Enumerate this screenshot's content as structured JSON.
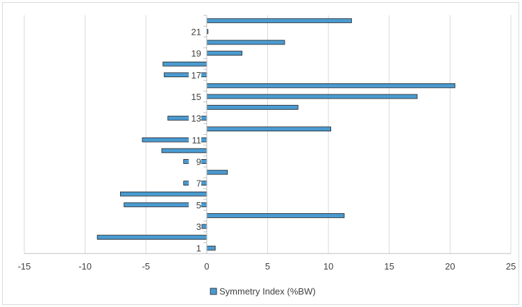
{
  "chart_data": {
    "type": "bar",
    "orientation": "horizontal",
    "categories": [
      "1",
      "2",
      "3",
      "4",
      "5",
      "6",
      "7",
      "8",
      "9",
      "10",
      "11",
      "12",
      "13",
      "14",
      "15",
      "16",
      "17",
      "18",
      "19",
      "20",
      "21",
      "22"
    ],
    "category_tick_labels": [
      "1",
      "3",
      "5",
      "7",
      "9",
      "11",
      "13",
      "15",
      "17",
      "19",
      "21"
    ],
    "series": [
      {
        "name": "Symmetry Index (%BW)",
        "values": [
          0.7,
          -9.0,
          -0.4,
          11.3,
          -6.8,
          -7.1,
          -1.9,
          1.7,
          -1.9,
          -3.7,
          -5.3,
          10.2,
          -3.2,
          7.5,
          17.3,
          20.4,
          -3.5,
          -3.6,
          2.9,
          6.4,
          0.1,
          11.9
        ]
      }
    ],
    "x_ticks": [
      "-15",
      "-10",
      "-5",
      "0",
      "5",
      "10",
      "15",
      "20",
      "25"
    ],
    "xlim": [
      -15,
      25
    ],
    "grid": "vertical",
    "legend_position": "bottom",
    "colors": {
      "bar_fill": "#4a9bd0",
      "bar_stroke": "#1f1f1f",
      "grid": "#d9d9d9",
      "axis": "#bfbfbf"
    }
  }
}
